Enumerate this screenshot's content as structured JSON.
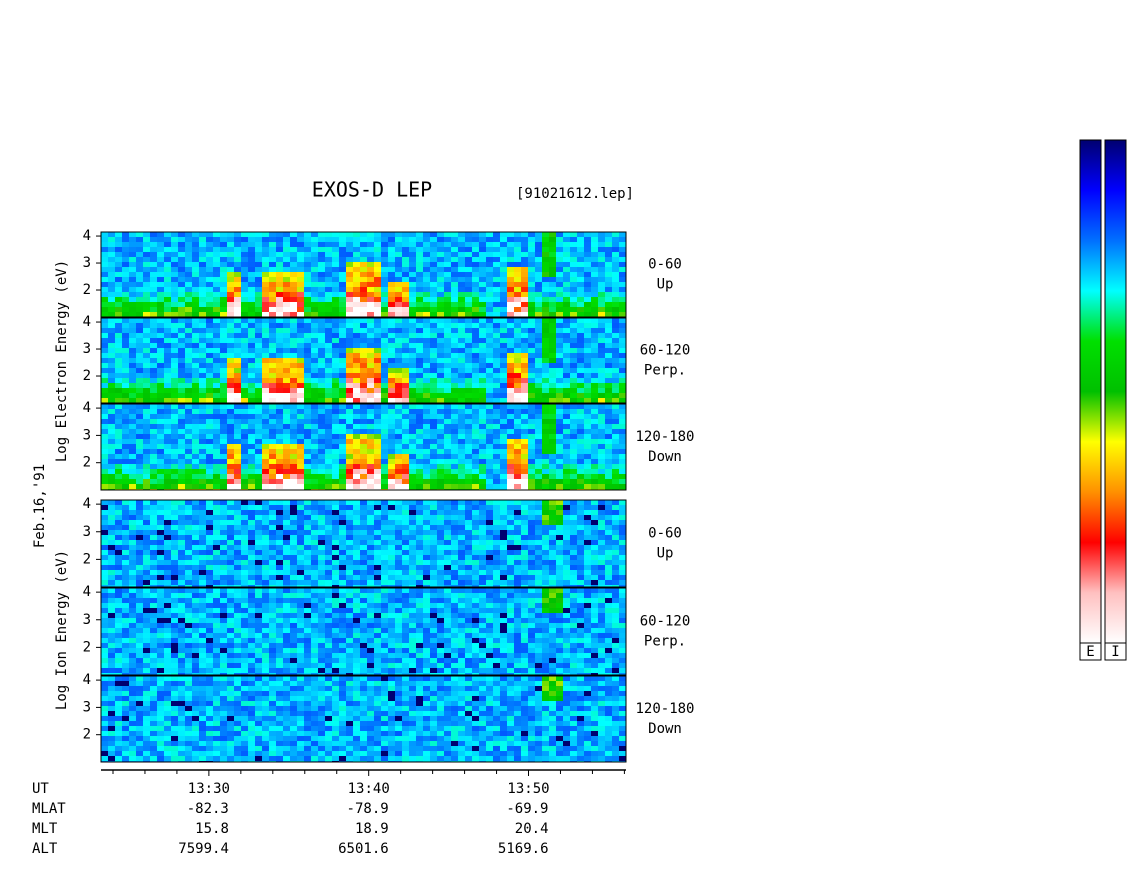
{
  "chart_data": {
    "type": "spectrogram",
    "title": "EXOS-D LEP",
    "file": "[91021612.lep]",
    "date": "Feb.16,'91",
    "electron_axis_label": "Log  Electron  Energy (eV)",
    "ion_axis_label": "Log  Ion  Energy (eV)",
    "panels": [
      {
        "species": "electron",
        "lines": [
          "0-60",
          "Up"
        ]
      },
      {
        "species": "electron",
        "lines": [
          "60-120",
          "Perp."
        ]
      },
      {
        "species": "electron",
        "lines": [
          "120-180",
          "Down"
        ]
      },
      {
        "species": "ion",
        "lines": [
          "0-60",
          "Up"
        ]
      },
      {
        "species": "ion",
        "lines": [
          "60-120",
          "Perp."
        ]
      },
      {
        "species": "ion",
        "lines": [
          "120-180",
          "Down"
        ]
      }
    ],
    "ylim": [
      1,
      4.15
    ],
    "yticks": [
      2,
      3,
      4
    ],
    "xlim": [
      23.25,
      56.1
    ],
    "xticks": [
      {
        "value": 30,
        "label": "13:30"
      },
      {
        "value": 40,
        "label": "13:40"
      },
      {
        "value": 50,
        "label": "13:50"
      }
    ],
    "xminor": [
      24,
      26,
      28,
      32,
      34,
      36,
      38,
      42,
      44,
      46,
      48,
      52,
      54,
      56
    ],
    "orbit": {
      "labels": [
        "UT",
        "MLAT",
        "MLT",
        "ALT"
      ],
      "rows": [
        [
          "-82.3",
          "-78.9",
          "-69.9"
        ],
        [
          "15.8",
          "18.9",
          "20.4"
        ],
        [
          "7599.4",
          "6501.6",
          "5169.6"
        ]
      ]
    },
    "colorbar_labels": [
      "E",
      "I"
    ],
    "colorscale": [
      "#000070",
      "#0000ff",
      "#0070ff",
      "#00ffff",
      "#00e000",
      "#00c000",
      "#ffff00",
      "#ff9000",
      "#ff0000",
      "#ffc0c0",
      "#ffffff"
    ]
  }
}
